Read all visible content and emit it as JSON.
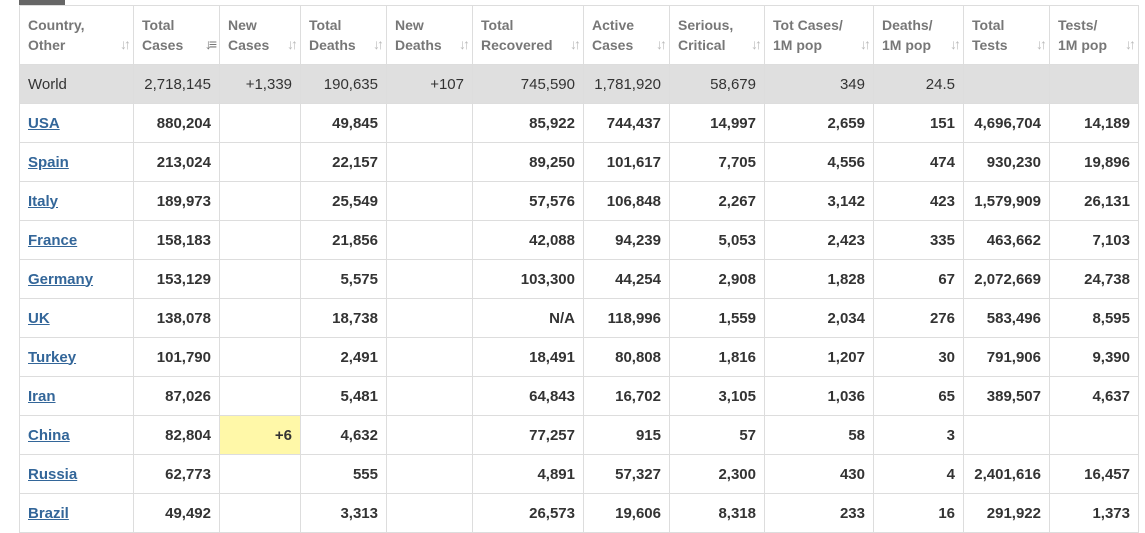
{
  "columns": [
    {
      "line1": "Country,",
      "line2": "Other",
      "sort_icon": "sort-icon"
    },
    {
      "line1": "Total",
      "line2": "Cases",
      "sort_icon": "sort-desc-icon"
    },
    {
      "line1": "New",
      "line2": "Cases",
      "sort_icon": "sort-icon"
    },
    {
      "line1": "Total",
      "line2": "Deaths",
      "sort_icon": "sort-icon"
    },
    {
      "line1": "New",
      "line2": "Deaths",
      "sort_icon": "sort-icon"
    },
    {
      "line1": "Total",
      "line2": "Recovered",
      "sort_icon": "sort-icon"
    },
    {
      "line1": "Active",
      "line2": "Cases",
      "sort_icon": "sort-icon"
    },
    {
      "line1": "Serious,",
      "line2": "Critical",
      "sort_icon": "sort-icon"
    },
    {
      "line1": "Tot Cases/",
      "line2": "1M pop",
      "sort_icon": "sort-icon"
    },
    {
      "line1": "Deaths/",
      "line2": "1M pop",
      "sort_icon": "sort-icon"
    },
    {
      "line1": "Total",
      "line2": "Tests",
      "sort_icon": "sort-icon"
    },
    {
      "line1": "Tests/",
      "line2": "1M pop",
      "sort_icon": "sort-icon"
    }
  ],
  "world": [
    "World",
    "2,718,145",
    "+1,339",
    "190,635",
    "+107",
    "745,590",
    "1,781,920",
    "58,679",
    "349",
    "24.5",
    "",
    ""
  ],
  "rows": [
    [
      "USA",
      "880,204",
      "",
      "49,845",
      "",
      "85,922",
      "744,437",
      "14,997",
      "2,659",
      "151",
      "4,696,704",
      "14,189"
    ],
    [
      "Spain",
      "213,024",
      "",
      "22,157",
      "",
      "89,250",
      "101,617",
      "7,705",
      "4,556",
      "474",
      "930,230",
      "19,896"
    ],
    [
      "Italy",
      "189,973",
      "",
      "25,549",
      "",
      "57,576",
      "106,848",
      "2,267",
      "3,142",
      "423",
      "1,579,909",
      "26,131"
    ],
    [
      "France",
      "158,183",
      "",
      "21,856",
      "",
      "42,088",
      "94,239",
      "5,053",
      "2,423",
      "335",
      "463,662",
      "7,103"
    ],
    [
      "Germany",
      "153,129",
      "",
      "5,575",
      "",
      "103,300",
      "44,254",
      "2,908",
      "1,828",
      "67",
      "2,072,669",
      "24,738"
    ],
    [
      "UK",
      "138,078",
      "",
      "18,738",
      "",
      "N/A",
      "118,996",
      "1,559",
      "2,034",
      "276",
      "583,496",
      "8,595"
    ],
    [
      "Turkey",
      "101,790",
      "",
      "2,491",
      "",
      "18,491",
      "80,808",
      "1,816",
      "1,207",
      "30",
      "791,906",
      "9,390"
    ],
    [
      "Iran",
      "87,026",
      "",
      "5,481",
      "",
      "64,843",
      "16,702",
      "3,105",
      "1,036",
      "65",
      "389,507",
      "4,637"
    ],
    [
      "China",
      "82,804",
      "+6",
      "4,632",
      "",
      "77,257",
      "915",
      "57",
      "58",
      "3",
      "",
      ""
    ],
    [
      "Russia",
      "62,773",
      "",
      "555",
      "",
      "4,891",
      "57,327",
      "2,300",
      "430",
      "4",
      "2,401,616",
      "16,457"
    ],
    [
      "Brazil",
      "49,492",
      "",
      "3,313",
      "",
      "26,573",
      "19,606",
      "8,318",
      "233",
      "16",
      "291,922",
      "1,373"
    ]
  ],
  "colors": {
    "header_text": "#777777",
    "link": "#336699",
    "world_row_bg": "#dfdfdf",
    "new_cases_highlight": "#fff8a8",
    "border": "#dddddd"
  }
}
